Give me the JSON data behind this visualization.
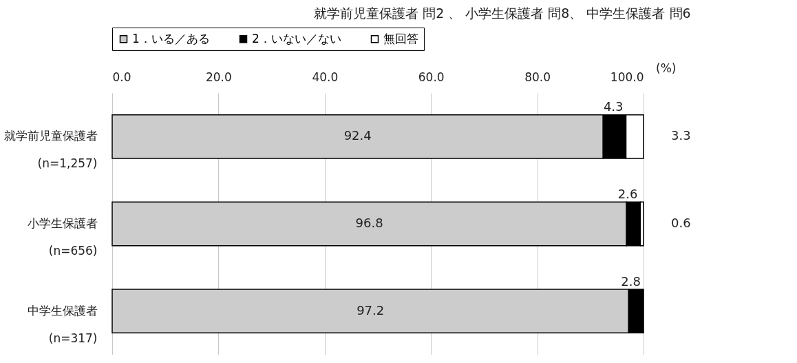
{
  "chart_data": {
    "type": "bar",
    "orientation": "horizontal",
    "stacked": true,
    "title": "就学前児童保護者 問2 、 小学生保護者 問8、 中学生保護者 問6",
    "xlabel": "(%)",
    "categories": [
      "就学前児童保護者\n(n=1,257)",
      "小学生保護者\n(n=656)",
      "中学生保護者\n(n=317)"
    ],
    "series": [
      {
        "name": "1．いる／ある",
        "color": "#cccccc",
        "values": [
          92.4,
          96.8,
          97.2
        ],
        "value_labels": [
          "92.4",
          "96.8",
          "97.2"
        ]
      },
      {
        "name": "2．いない／ない",
        "color": "#000000",
        "values": [
          4.3,
          2.6,
          2.8
        ],
        "value_labels": [
          "4.3",
          "2.6",
          "2.8"
        ]
      },
      {
        "name": "無回答",
        "color": "#ffffff",
        "values": [
          3.3,
          0.6,
          null
        ],
        "value_labels": [
          "3.3",
          "0.6",
          null
        ]
      }
    ],
    "xlim": [
      0,
      100
    ],
    "xticks": [
      {
        "value": 0,
        "label": "0.0"
      },
      {
        "value": 20,
        "label": "20.0"
      },
      {
        "value": 40,
        "label": "40.0"
      },
      {
        "value": 60,
        "label": "60.0"
      },
      {
        "value": 80,
        "label": "80.0"
      },
      {
        "value": 100,
        "label": "100.0"
      }
    ],
    "grid": "x",
    "legend": "top"
  }
}
